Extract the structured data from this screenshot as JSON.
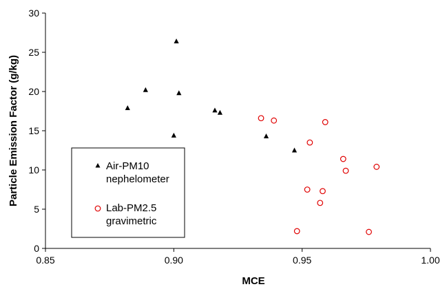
{
  "chart_data": {
    "type": "scatter",
    "title": "",
    "xlabel": "MCE",
    "ylabel": "Particle Emission Factor (g/kg)",
    "xlim": [
      0.85,
      1.0
    ],
    "ylim": [
      0,
      30
    ],
    "x_ticks": [
      "0.85",
      "0.90",
      "0.95",
      "1.00"
    ],
    "y_ticks": [
      "0",
      "5",
      "10",
      "15",
      "20",
      "25",
      "30"
    ],
    "grid": false,
    "legend_position": "lower-left",
    "series": [
      {
        "name_lines": [
          "Air-PM10",
          "nephelometer"
        ],
        "marker": "filled-triangle",
        "color": "#000000",
        "points": [
          [
            0.882,
            17.9
          ],
          [
            0.889,
            20.2
          ],
          [
            0.9,
            14.4
          ],
          [
            0.901,
            26.4
          ],
          [
            0.902,
            19.8
          ],
          [
            0.916,
            17.6
          ],
          [
            0.918,
            17.3
          ],
          [
            0.936,
            14.3
          ],
          [
            0.947,
            12.5
          ]
        ]
      },
      {
        "name_lines": [
          "Lab-PM2.5",
          "gravimetric"
        ],
        "marker": "open-circle",
        "color": "#e00000",
        "points": [
          [
            0.934,
            16.6
          ],
          [
            0.939,
            16.3
          ],
          [
            0.948,
            2.2
          ],
          [
            0.952,
            7.5
          ],
          [
            0.953,
            13.5
          ],
          [
            0.957,
            5.8
          ],
          [
            0.958,
            7.3
          ],
          [
            0.959,
            16.1
          ],
          [
            0.966,
            11.4
          ],
          [
            0.967,
            9.9
          ],
          [
            0.976,
            2.1
          ],
          [
            0.979,
            10.4
          ]
        ]
      }
    ]
  }
}
